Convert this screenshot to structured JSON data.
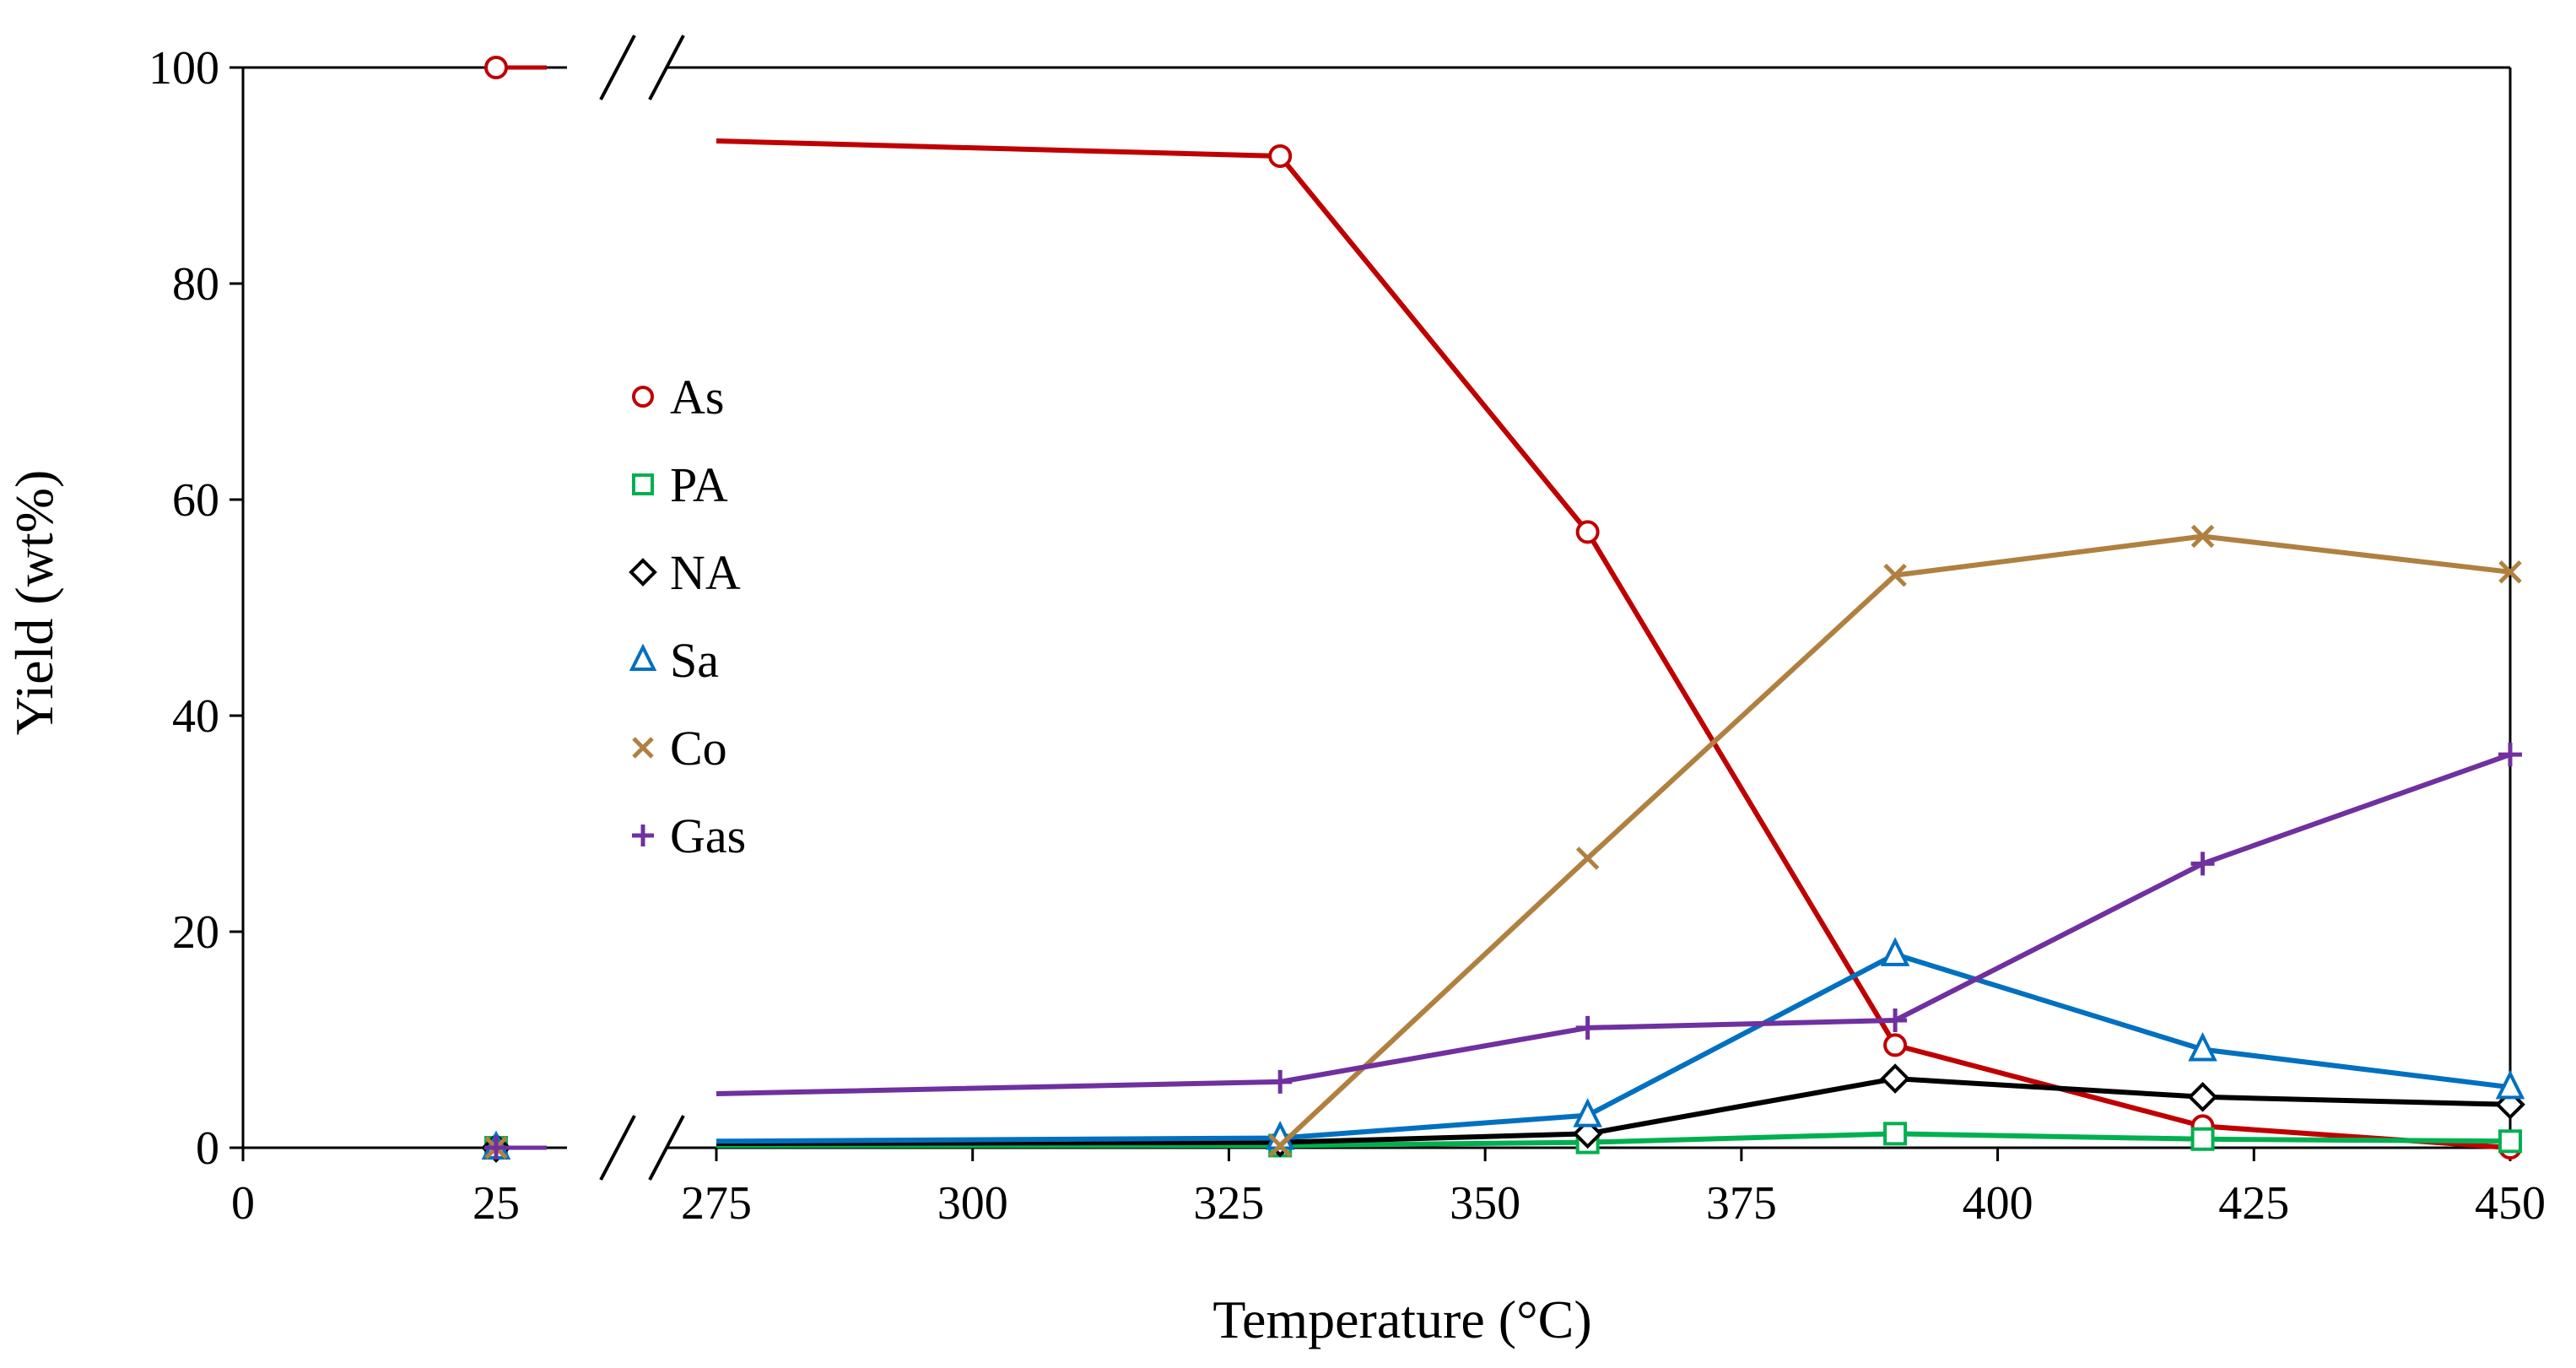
{
  "chart_data": {
    "type": "line",
    "title": "",
    "xlabel": "Temperature (°C)",
    "ylabel": "Yield (wt%)",
    "ylim": [
      0,
      100
    ],
    "yticks": [
      "0",
      "20",
      "40",
      "60",
      "80",
      "100"
    ],
    "xticks": [
      "0",
      "25",
      "275",
      "300",
      "325",
      "350",
      "375",
      "400",
      "425",
      "450"
    ],
    "x_axis_break": "between 25 and 275",
    "grid": false,
    "legend": "inside, center-left",
    "series": [
      {
        "name": "As",
        "color": "#C00000",
        "marker": "circle",
        "start_point": {
          "x": 25,
          "y": 100
        },
        "points": [
          {
            "x": 275,
            "y": 93.2
          },
          {
            "x": 330,
            "y": 91.8
          },
          {
            "x": 360,
            "y": 57.0
          },
          {
            "x": 390,
            "y": 9.5
          },
          {
            "x": 420,
            "y": 2.0
          },
          {
            "x": 450,
            "y": 0.0
          }
        ]
      },
      {
        "name": "PA",
        "color": "#00B050",
        "marker": "square",
        "start_point": {
          "x": 25,
          "y": 0
        },
        "points": [
          {
            "x": 275,
            "y": 0.2
          },
          {
            "x": 330,
            "y": 0.2
          },
          {
            "x": 360,
            "y": 0.5
          },
          {
            "x": 390,
            "y": 1.3
          },
          {
            "x": 420,
            "y": 0.8
          },
          {
            "x": 450,
            "y": 0.6
          }
        ]
      },
      {
        "name": "NA",
        "color": "#000000",
        "marker": "diamond",
        "start_point": {
          "x": 25,
          "y": 0
        },
        "points": [
          {
            "x": 275,
            "y": 0.4
          },
          {
            "x": 330,
            "y": 0.5
          },
          {
            "x": 360,
            "y": 1.3
          },
          {
            "x": 390,
            "y": 6.4
          },
          {
            "x": 420,
            "y": 4.7
          },
          {
            "x": 450,
            "y": 4.0
          }
        ]
      },
      {
        "name": "Sa",
        "color": "#0070C0",
        "marker": "triangle",
        "start_point": {
          "x": 25,
          "y": 0
        },
        "points": [
          {
            "x": 275,
            "y": 0.6
          },
          {
            "x": 330,
            "y": 0.9
          },
          {
            "x": 360,
            "y": 3.0
          },
          {
            "x": 390,
            "y": 17.9
          },
          {
            "x": 420,
            "y": 9.1
          },
          {
            "x": 450,
            "y": 5.6
          }
        ]
      },
      {
        "name": "Co",
        "color": "#B08040",
        "marker": "x",
        "start_point": {
          "x": 25,
          "y": 0
        },
        "points": [
          {
            "x": 330,
            "y": 0.2
          },
          {
            "x": 360,
            "y": 26.8
          },
          {
            "x": 390,
            "y": 53.0
          },
          {
            "x": 420,
            "y": 56.6
          },
          {
            "x": 450,
            "y": 53.3
          }
        ]
      },
      {
        "name": "Gas",
        "color": "#7030A0",
        "marker": "plus",
        "start_point": {
          "x": 25,
          "y": 0
        },
        "points": [
          {
            "x": 275,
            "y": 5.0
          },
          {
            "x": 330,
            "y": 6.1
          },
          {
            "x": 360,
            "y": 11.1
          },
          {
            "x": 390,
            "y": 11.8
          },
          {
            "x": 420,
            "y": 26.3
          },
          {
            "x": 450,
            "y": 36.4
          }
        ]
      }
    ]
  }
}
